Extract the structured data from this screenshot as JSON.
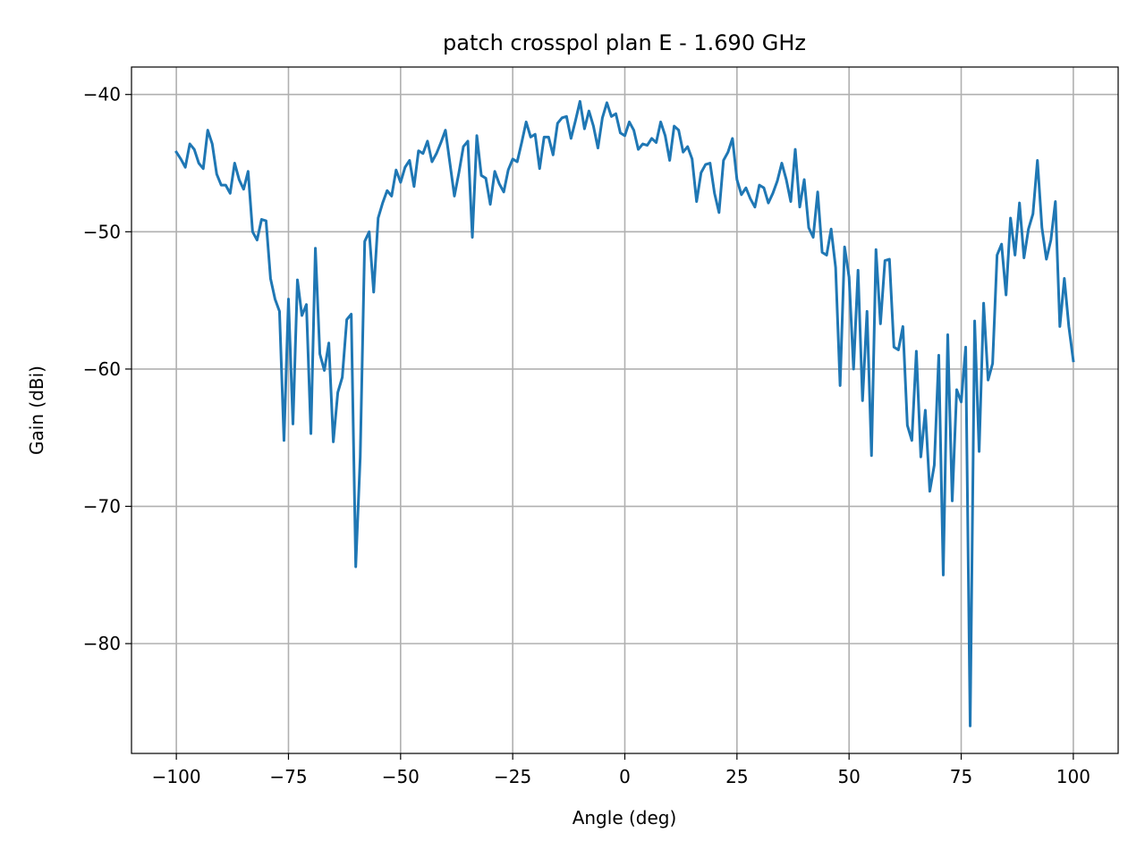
{
  "chart_data": {
    "type": "line",
    "title": "patch crosspol plan E - 1.690 GHz",
    "xlabel": "Angle (deg)",
    "ylabel": "Gain (dBi)",
    "xlim": [
      -110,
      110
    ],
    "ylim": [
      -88,
      -38
    ],
    "xticks": [
      -100,
      -75,
      -50,
      -25,
      0,
      25,
      50,
      75,
      100
    ],
    "yticks": [
      -40,
      -50,
      -60,
      -70,
      -80
    ],
    "grid": true,
    "series": [
      {
        "color": "#1f77b4",
        "x": [
          -100,
          -99,
          -98,
          -97,
          -96,
          -95,
          -94,
          -93,
          -92,
          -91,
          -90,
          -89,
          -88,
          -87,
          -86,
          -85,
          -84,
          -83,
          -82,
          -81,
          -80,
          -79,
          -78,
          -77,
          -76,
          -75,
          -74,
          -73,
          -72,
          -71,
          -70,
          -69,
          -68,
          -67,
          -66,
          -65,
          -64,
          -63,
          -62,
          -61,
          -60,
          -59,
          -58,
          -57,
          -56,
          -55,
          -54,
          -53,
          -52,
          -51,
          -50,
          -49,
          -48,
          -47,
          -46,
          -45,
          -44,
          -43,
          -42,
          -41,
          -40,
          -39,
          -38,
          -37,
          -36,
          -35,
          -34,
          -33,
          -32,
          -31,
          -30,
          -29,
          -28,
          -27,
          -26,
          -25,
          -24,
          -23,
          -22,
          -21,
          -20,
          -19,
          -18,
          -17,
          -16,
          -15,
          -14,
          -13,
          -12,
          -11,
          -10,
          -9,
          -8,
          -7,
          -6,
          -5,
          -4,
          -3,
          -2,
          -1,
          0,
          1,
          2,
          3,
          4,
          5,
          6,
          7,
          8,
          9,
          10,
          11,
          12,
          13,
          14,
          15,
          16,
          17,
          18,
          19,
          20,
          21,
          22,
          23,
          24,
          25,
          26,
          27,
          28,
          29,
          30,
          31,
          32,
          33,
          34,
          35,
          36,
          37,
          38,
          39,
          40,
          41,
          42,
          43,
          44,
          45,
          46,
          47,
          48,
          49,
          50,
          51,
          52,
          53,
          54,
          55,
          56,
          57,
          58,
          59,
          60,
          61,
          62,
          63,
          64,
          65,
          66,
          67,
          68,
          69,
          70,
          71,
          72,
          73,
          74,
          75,
          76,
          77,
          78,
          79,
          80,
          81,
          82,
          83,
          84,
          85,
          86,
          87,
          88,
          89,
          90,
          91,
          92,
          93,
          94,
          95,
          96,
          97,
          98,
          99,
          100
        ],
        "values": [
          -44.2,
          -44.7,
          -45.3,
          -43.6,
          -44.0,
          -45.0,
          -45.4,
          -42.6,
          -43.6,
          -45.8,
          -46.6,
          -46.6,
          -47.2,
          -45.0,
          -46.2,
          -46.9,
          -45.6,
          -50.0,
          -50.6,
          -49.1,
          -49.2,
          -53.4,
          -54.9,
          -55.8,
          -65.2,
          -54.9,
          -64.0,
          -53.5,
          -56.1,
          -55.3,
          -64.7,
          -51.2,
          -58.9,
          -60.1,
          -58.1,
          -65.3,
          -61.7,
          -60.6,
          -56.4,
          -56.0,
          -74.4,
          -66.4,
          -50.7,
          -50.0,
          -54.4,
          -49.0,
          -47.9,
          -47.0,
          -47.4,
          -45.5,
          -46.4,
          -45.3,
          -44.8,
          -46.7,
          -44.1,
          -44.3,
          -43.4,
          -44.9,
          -44.3,
          -43.5,
          -42.6,
          -45.0,
          -47.4,
          -45.7,
          -43.8,
          -43.4,
          -50.4,
          -43.0,
          -45.9,
          -46.1,
          -48.0,
          -45.6,
          -46.5,
          -47.1,
          -45.5,
          -44.7,
          -44.9,
          -43.5,
          -42.0,
          -43.1,
          -42.9,
          -45.4,
          -43.1,
          -43.1,
          -44.4,
          -42.1,
          -41.7,
          -41.6,
          -43.2,
          -41.9,
          -40.5,
          -42.5,
          -41.2,
          -42.3,
          -43.9,
          -41.7,
          -40.6,
          -41.6,
          -41.4,
          -42.8,
          -43.0,
          -42.0,
          -42.6,
          -44.0,
          -43.6,
          -43.7,
          -43.2,
          -43.5,
          -42.0,
          -43.0,
          -44.8,
          -42.3,
          -42.6,
          -44.2,
          -43.8,
          -44.7,
          -47.8,
          -45.7,
          -45.1,
          -45.0,
          -47.2,
          -48.6,
          -44.8,
          -44.2,
          -43.2,
          -46.2,
          -47.3,
          -46.8,
          -47.6,
          -48.2,
          -46.6,
          -46.8,
          -47.9,
          -47.2,
          -46.3,
          -45.0,
          -46.2,
          -47.8,
          -44.0,
          -48.2,
          -46.2,
          -49.7,
          -50.4,
          -47.1,
          -51.5,
          -51.7,
          -49.8,
          -52.6,
          -61.2,
          -51.1,
          -53.3,
          -60.0,
          -52.8,
          -62.3,
          -55.8,
          -66.3,
          -51.3,
          -56.7,
          -52.1,
          -52.0,
          -58.4,
          -58.6,
          -56.9,
          -64.1,
          -65.2,
          -58.7,
          -66.4,
          -63.0,
          -68.9,
          -67.0,
          -59.0,
          -75.0,
          -57.5,
          -69.6,
          -61.5,
          -62.4,
          -58.4,
          -86.0,
          -56.5,
          -66.0,
          -55.2,
          -60.8,
          -59.6,
          -51.7,
          -50.9,
          -54.6,
          -49.0,
          -51.7,
          -47.9,
          -51.9,
          -49.8,
          -48.7,
          -44.8,
          -49.7,
          -52.0,
          -50.6,
          -47.8,
          -56.9,
          -53.4,
          -56.9,
          -59.4
        ]
      }
    ]
  }
}
